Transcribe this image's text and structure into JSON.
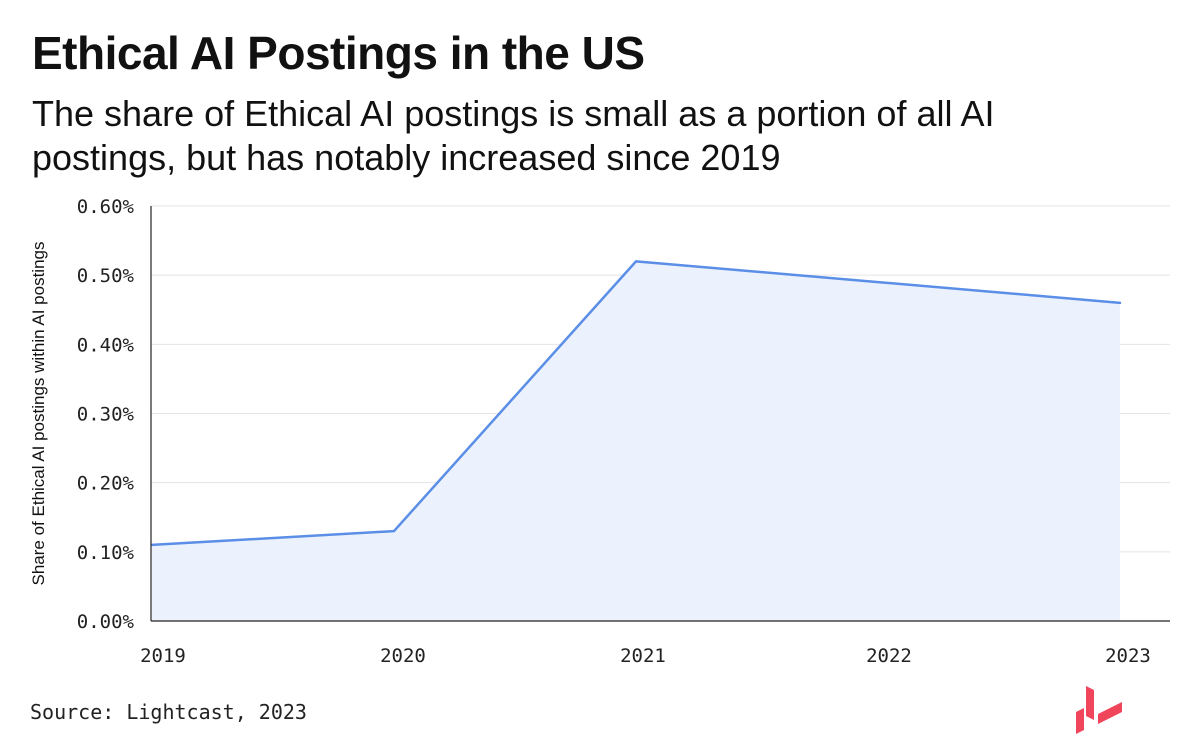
{
  "header": {
    "title": "Ethical AI Postings in the US",
    "subtitle": "The share of Ethical AI postings is small as a portion of all AI postings, but has notably increased since 2019"
  },
  "footer": {
    "source": "Source: Lightcast, 2023",
    "logo_icon": "lightcast-logo-icon"
  },
  "chart_data": {
    "type": "area",
    "title": "Ethical AI Postings in the US",
    "subtitle": "The share of Ethical AI postings is small as a portion of all AI postings, but has notably increased since 2019",
    "xlabel": "",
    "ylabel": "Share of Ethical AI postings within AI postings",
    "x": [
      "2019",
      "2020",
      "2021",
      "2022",
      "2023"
    ],
    "values": [
      0.0011,
      0.0013,
      0.0052,
      0.0049,
      0.0046
    ],
    "ylim": [
      0,
      0.006
    ],
    "yticks": [
      0,
      0.001,
      0.002,
      0.003,
      0.004,
      0.005,
      0.006
    ],
    "ytick_labels": [
      "0.00%",
      "0.10%",
      "0.20%",
      "0.30%",
      "0.40%",
      "0.50%",
      "0.60%"
    ],
    "grid": true,
    "legend": "none",
    "line_color": "#5b8ee6",
    "fill_color": "#ecf2fd"
  },
  "colors": {
    "logo": "#f0455a",
    "gridline": "#e4e4e4",
    "axis": "#222222"
  }
}
